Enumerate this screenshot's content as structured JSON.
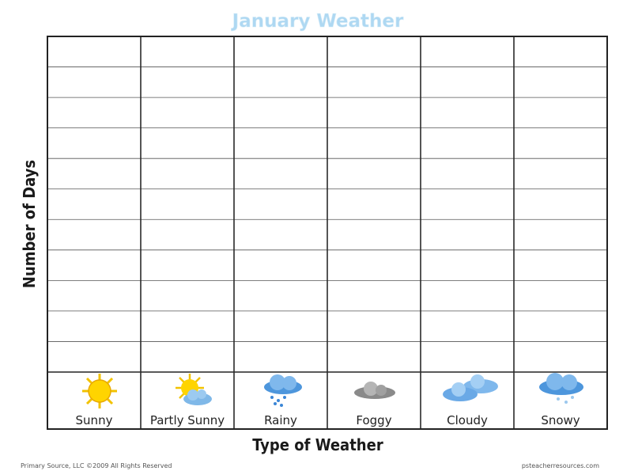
{
  "header": {
    "title": "January Weather"
  },
  "y_axis_label": "Number of Days",
  "x_axis_label": "Type of Weather",
  "columns": [
    "Sunny",
    "Partly Sunny",
    "Rainy",
    "Foggy",
    "Cloudy",
    "Snowy"
  ],
  "footer": {
    "left": "Primary Source, LLC ©2009 All Rights Reserved",
    "right": "psteacherresources.com"
  }
}
